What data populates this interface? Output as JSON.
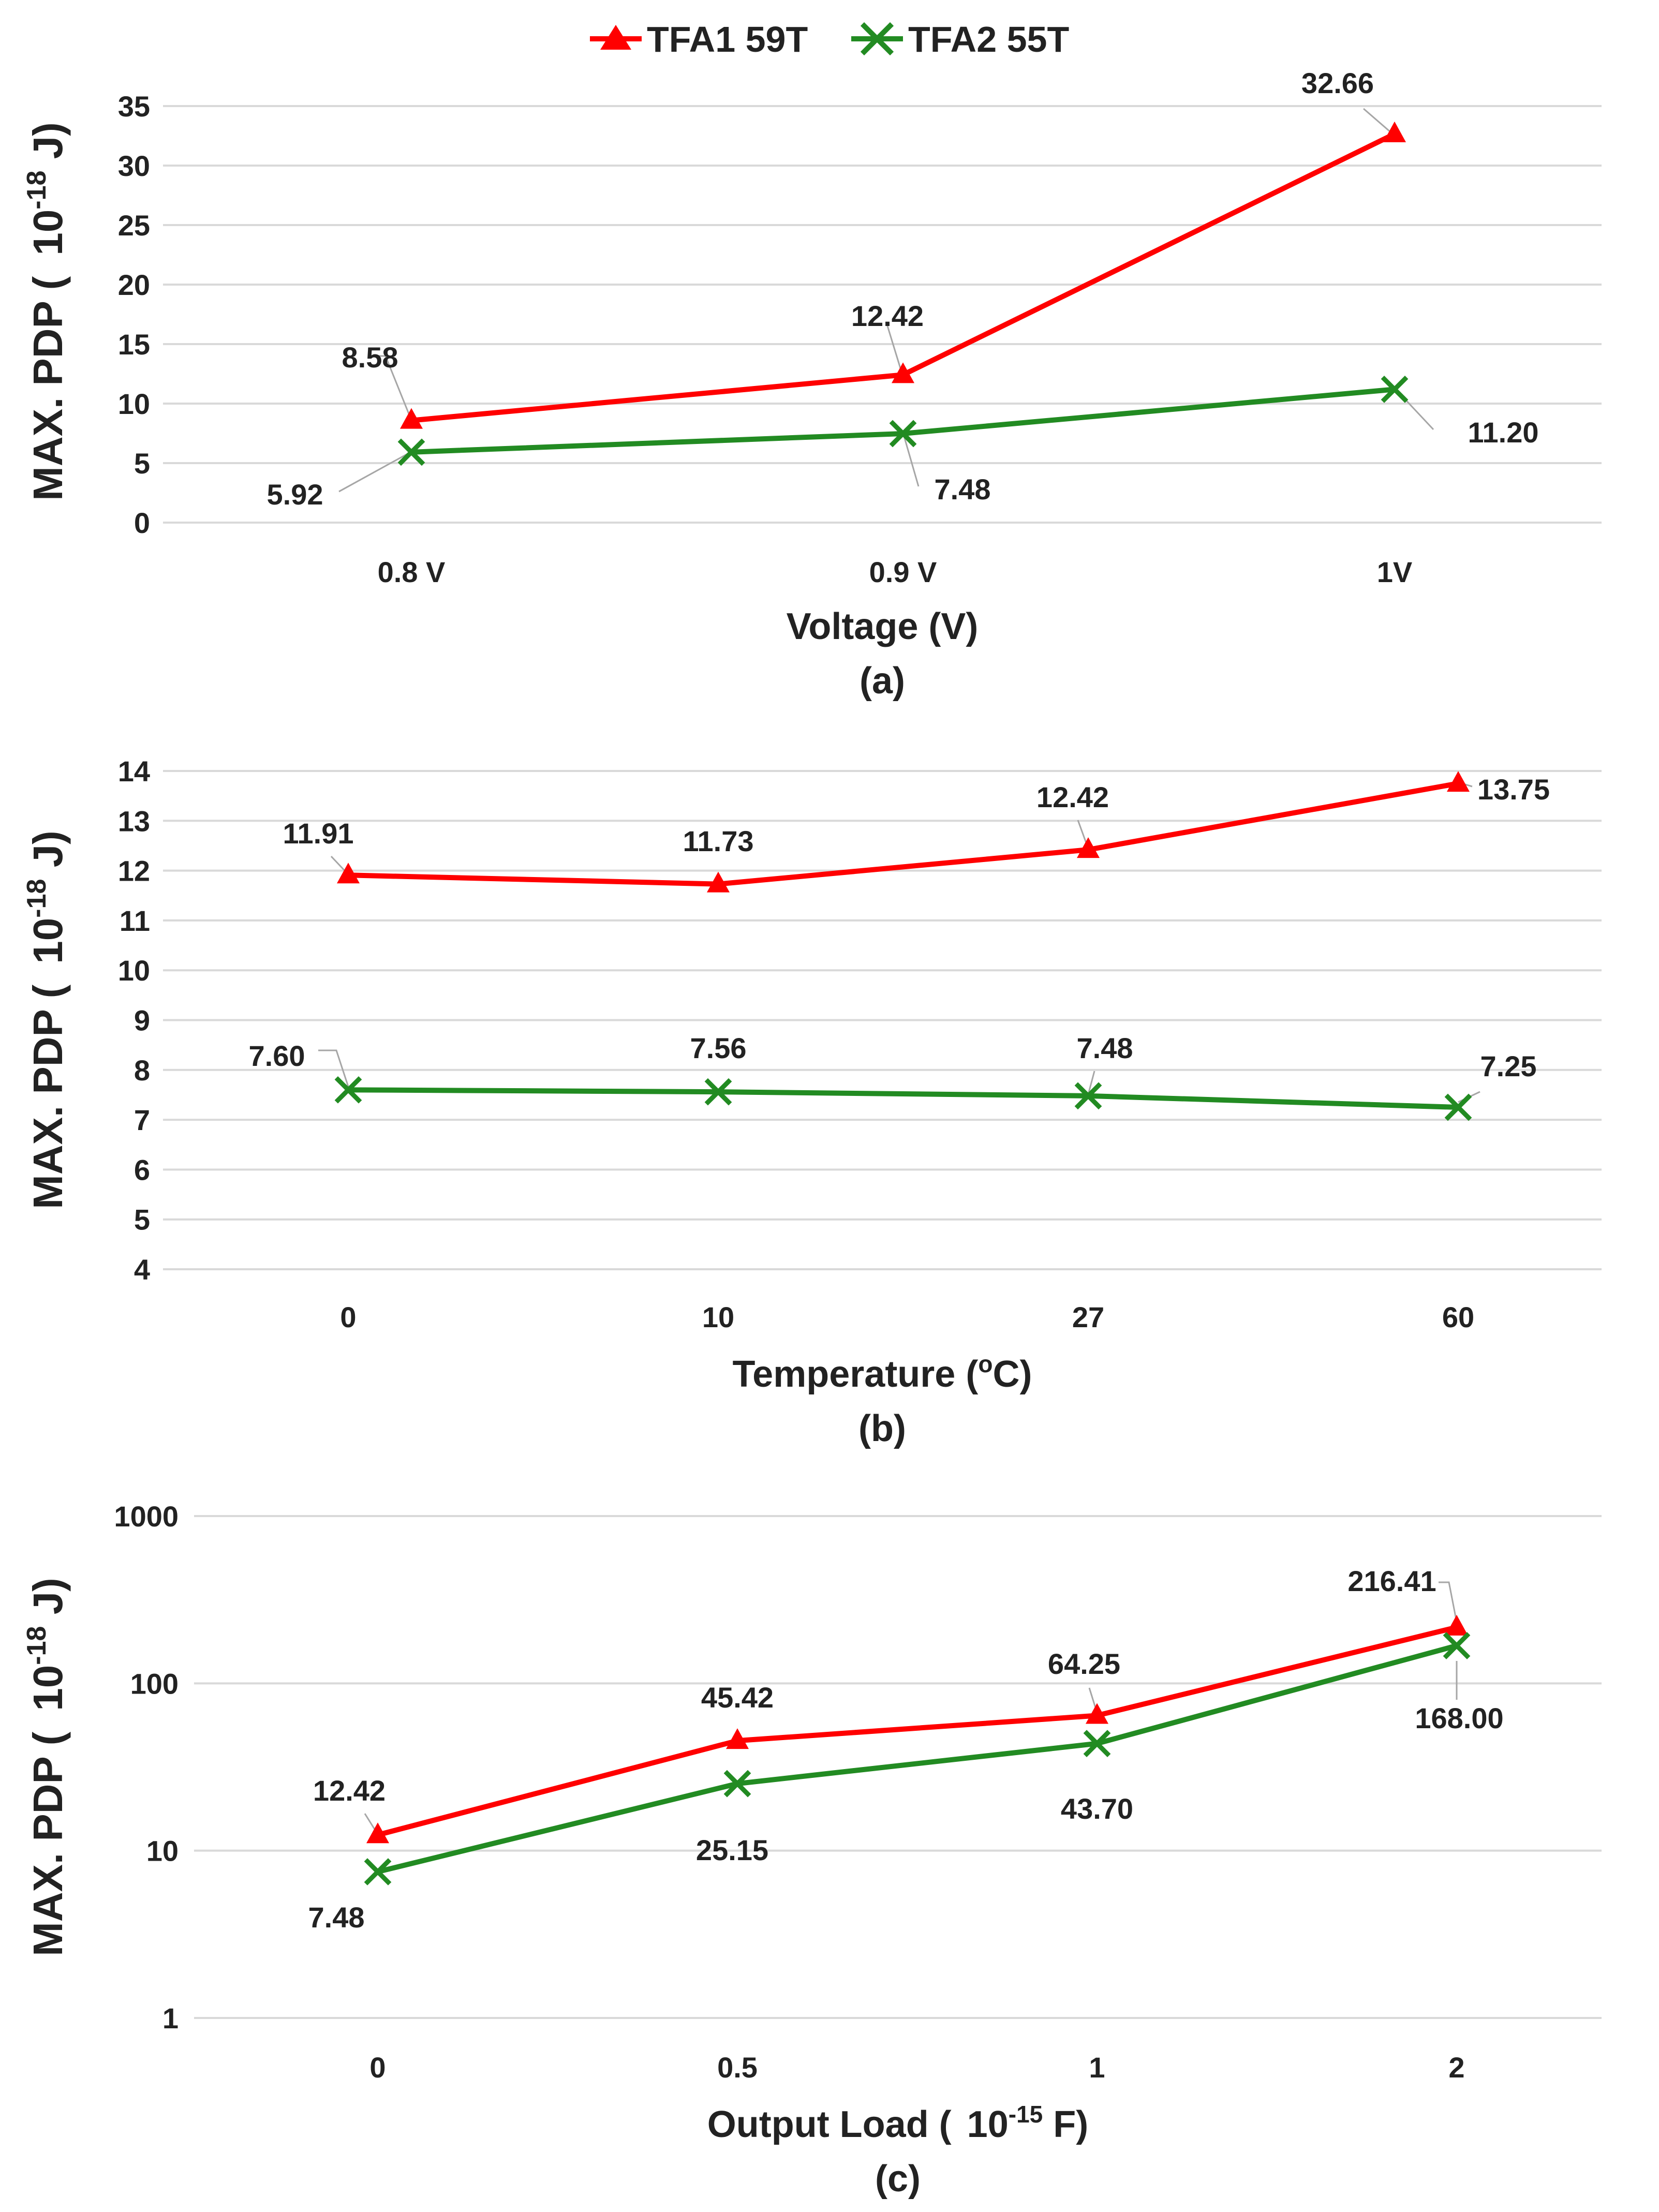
{
  "legend": {
    "series1": "TFA1 59T",
    "series2": "TFA2 55T"
  },
  "colors": {
    "series1": "#ff0000",
    "series2": "#228b22",
    "grid": "#d9d9d9",
    "text": "#222222"
  },
  "chart_data": [
    {
      "type": "line",
      "panel": "(a)",
      "xlabel": "Voltage (V)",
      "ylabel": "MAX. PDP (",
      "yunit": "10",
      "yexp": "-18",
      "yunit_suffix": " J)",
      "categories": [
        "0.8 V",
        "0.9 V",
        "1V"
      ],
      "yticks": [
        "0",
        "5",
        "10",
        "15",
        "20",
        "25",
        "30",
        "35"
      ],
      "ylim": [
        0,
        35
      ],
      "yscale": "linear",
      "grid": true,
      "series": [
        {
          "name": "TFA1 59T",
          "marker": "triangle",
          "values": [
            8.58,
            12.42,
            32.66
          ],
          "labels": [
            "8.58",
            "12.42",
            "32.66"
          ]
        },
        {
          "name": "TFA2 55T",
          "marker": "x",
          "values": [
            5.92,
            7.48,
            11.2
          ],
          "labels": [
            "5.92",
            "7.48",
            "11.20"
          ]
        }
      ]
    },
    {
      "type": "line",
      "panel": "(b)",
      "xlabel": "Temperature (",
      "xunit_sup": "o",
      "xlabel_suffix": "C)",
      "ylabel": "MAX. PDP (",
      "yunit": "10",
      "yexp": "-18",
      "yunit_suffix": " J)",
      "categories": [
        "0",
        "10",
        "27",
        "60"
      ],
      "yticks": [
        "4",
        "5",
        "6",
        "7",
        "8",
        "9",
        "10",
        "11",
        "12",
        "13",
        "14"
      ],
      "ylim": [
        4,
        14
      ],
      "yscale": "linear",
      "grid": true,
      "series": [
        {
          "name": "TFA1 59T",
          "marker": "triangle",
          "values": [
            11.91,
            11.73,
            12.42,
            13.75
          ],
          "labels": [
            "11.91",
            "11.73",
            "12.42",
            "13.75"
          ]
        },
        {
          "name": "TFA2 55T",
          "marker": "x",
          "values": [
            7.6,
            7.56,
            7.48,
            7.25
          ],
          "labels": [
            "7.60",
            "7.56",
            "7.48",
            "7.25"
          ]
        }
      ]
    },
    {
      "type": "line",
      "panel": "(c)",
      "xlabel": "Output Load (",
      "xunit": "10",
      "xexp": "-15",
      "xlabel_suffix": " F)",
      "ylabel": "MAX. PDP (",
      "yunit": "10",
      "yexp": "-18",
      "yunit_suffix": " J)",
      "categories": [
        "0",
        "0.5",
        "1",
        "2"
      ],
      "yticks": [
        "1",
        "10",
        "100",
        "1000"
      ],
      "ylim": [
        1,
        1000
      ],
      "yscale": "log",
      "grid": true,
      "series": [
        {
          "name": "TFA1 59T",
          "marker": "triangle",
          "values": [
            12.42,
            45.42,
            64.25,
            216.41
          ],
          "labels": [
            "12.42",
            "45.42",
            "64.25",
            "216.41"
          ]
        },
        {
          "name": "TFA2 55T",
          "marker": "x",
          "values": [
            7.48,
            25.15,
            43.7,
            168.0
          ],
          "labels": [
            "7.48",
            "25.15",
            "43.70",
            "168.00"
          ]
        }
      ]
    }
  ]
}
